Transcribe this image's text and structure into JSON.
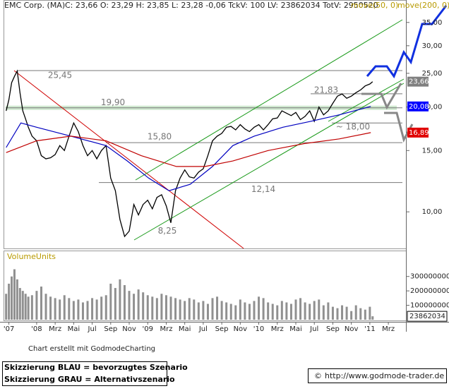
{
  "chart_data": {
    "type": "line",
    "title": "EMC Corp. (MA)",
    "subtitle": "C: 23,66 O: 23,29 H: 23,85 L: 23,28 -0,06 TckV: 100 LV: 23862034 TotV: 2950520",
    "y_scale": "log",
    "ylim": [
      7.85,
      40.6
    ],
    "yticks": [
      {
        "value": 10,
        "label": "10,00"
      },
      {
        "value": 15,
        "label": "15,00"
      },
      {
        "value": 20,
        "label": "20,00"
      },
      {
        "value": 25,
        "label": "25,00"
      },
      {
        "value": 30,
        "label": "30,00"
      },
      {
        "value": 35,
        "label": "35,00"
      }
    ],
    "xlim": [
      -3.35,
      39.9
    ],
    "xticks": [
      {
        "value": -3,
        "label": "'07"
      },
      {
        "value": 0,
        "label": "'08"
      },
      {
        "value": 2,
        "label": "Mrz"
      },
      {
        "value": 4,
        "label": "Mai"
      },
      {
        "value": 6,
        "label": "Jul"
      },
      {
        "value": 8,
        "label": "Sep"
      },
      {
        "value": 10,
        "label": "Nov"
      },
      {
        "value": 12,
        "label": "'09"
      },
      {
        "value": 14,
        "label": "Mrz"
      },
      {
        "value": 16,
        "label": "Mai"
      },
      {
        "value": 18,
        "label": "Jul"
      },
      {
        "value": 20,
        "label": "Sep"
      },
      {
        "value": 22,
        "label": "Nov"
      },
      {
        "value": 24,
        "label": "'10"
      },
      {
        "value": 26,
        "label": "Mrz"
      },
      {
        "value": 28,
        "label": "Mai"
      },
      {
        "value": 30,
        "label": "Jul"
      },
      {
        "value": 32,
        "label": "Sep"
      },
      {
        "value": 34,
        "label": "Nov"
      },
      {
        "value": 36,
        "label": "'11"
      },
      {
        "value": 38,
        "label": "Mrz"
      }
    ],
    "x": [
      -3.3,
      -3,
      -2.7,
      -2.4,
      -2.1,
      -1.8,
      -1.5,
      -1.2,
      -0.9,
      -0.5,
      0,
      0.5,
      1,
      1.5,
      2,
      2.5,
      3,
      3.5,
      4,
      4.5,
      5,
      5.5,
      6,
      6.5,
      7,
      7.5,
      8,
      8.5,
      9,
      9.5,
      10,
      10.5,
      11,
      11.5,
      12,
      12.5,
      13,
      13.5,
      14,
      14.5,
      15,
      15.5,
      16,
      16.5,
      17,
      17.5,
      18,
      18.5,
      19,
      19.5,
      20,
      20.5,
      21,
      21.5,
      22,
      22.5,
      23,
      23.5,
      24,
      24.5,
      25,
      25.5,
      26,
      26.5,
      27,
      27.5,
      28,
      28.5,
      29,
      29.5,
      30,
      30.5,
      31,
      31.5,
      32,
      32.5,
      33,
      33.5,
      34,
      34.5,
      35,
      35.5,
      36,
      36.3
    ],
    "series": [
      {
        "color": "#000000",
        "values": [
          19.5,
          21,
          23.5,
          24.5,
          25.4,
          22,
          19.5,
          18.5,
          17.5,
          16.5,
          16,
          14.5,
          14.2,
          14.3,
          14.6,
          15.5,
          15,
          16.5,
          18,
          17,
          15.5,
          14.5,
          15,
          14.2,
          15,
          15.5,
          12.5,
          11.5,
          9.5,
          8.5,
          8.8,
          10.5,
          9.8,
          10.5,
          10.8,
          10.2,
          11,
          11.2,
          10.4,
          9.3,
          11.5,
          12.5,
          13.2,
          12.6,
          12.5,
          13,
          13.3,
          14.5,
          16,
          16.5,
          16.8,
          17.5,
          17.6,
          17.2,
          17.8,
          17.3,
          17,
          17.5,
          17.8,
          17.2,
          17.8,
          18.5,
          18.6,
          19.5,
          19.2,
          18.9,
          19.3,
          18.4,
          18.8,
          19.5,
          18.2,
          20,
          19,
          19.5,
          20.5,
          21.5,
          21.8,
          21.2,
          21.5,
          22,
          22.4,
          23,
          23.3,
          23.66
        ]
      },
      {
        "name": "move(50, 0)",
        "color": "#0000c0",
        "x": [
          -3.3,
          -1.7,
          0,
          3.7,
          7.5,
          9.8,
          12.1,
          14.3,
          16.6,
          19.0,
          21.2,
          23.5,
          26.6,
          29.6,
          32.7,
          36.1
        ],
        "values": [
          15.3,
          18,
          17.5,
          16.5,
          15.5,
          14,
          12.5,
          11.5,
          12,
          13.5,
          15.5,
          16.5,
          17.5,
          18.2,
          19,
          20.08
        ]
      },
      {
        "name": "move(200, 0)",
        "color": "#c00000",
        "x": [
          -3.3,
          0,
          3.7,
          7.5,
          11.3,
          15.1,
          18.2,
          21.2,
          25.0,
          28.9,
          32.7,
          36.1
        ],
        "values": [
          14.8,
          16,
          16.5,
          16,
          14.5,
          13.5,
          13.5,
          14,
          15,
          15.7,
          16.2,
          16.89
        ]
      }
    ],
    "levels": [
      {
        "value": 25.45,
        "label": "25,45"
      },
      {
        "value": 19.9,
        "label": "19,90"
      },
      {
        "value": 15.8,
        "label": "15,80"
      },
      {
        "value": 12.14,
        "label": "12,14"
      },
      {
        "value": 8.25,
        "label": "8,25"
      },
      {
        "value": 21.83,
        "label": "21,83"
      },
      {
        "value": 18,
        "label": "~ 18,00"
      }
    ],
    "price_labels": [
      {
        "value": 23.66,
        "label": "23,66",
        "color": "#808080"
      },
      {
        "value": 20.08,
        "label": "20,08",
        "color": "#0000ff"
      },
      {
        "value": 16.89,
        "label": "16,89",
        "color": "#e00000"
      }
    ],
    "volume": {
      "label": "VolumeUnits",
      "color": "#909090",
      "ylim": [
        0,
        470000000
      ],
      "yticks": [
        100000000,
        200000000,
        300000000
      ],
      "values": [
        180000000,
        250000000,
        300000000,
        350000000,
        280000000,
        220000000,
        200000000,
        180000000,
        160000000,
        170000000,
        200000000,
        230000000,
        180000000,
        160000000,
        150000000,
        140000000,
        170000000,
        150000000,
        130000000,
        140000000,
        120000000,
        130000000,
        150000000,
        140000000,
        160000000,
        170000000,
        250000000,
        220000000,
        280000000,
        240000000,
        200000000,
        180000000,
        210000000,
        190000000,
        170000000,
        160000000,
        150000000,
        180000000,
        170000000,
        160000000,
        150000000,
        140000000,
        130000000,
        150000000,
        140000000,
        120000000,
        130000000,
        110000000,
        150000000,
        160000000,
        130000000,
        120000000,
        110000000,
        100000000,
        140000000,
        120000000,
        110000000,
        130000000,
        160000000,
        150000000,
        120000000,
        110000000,
        100000000,
        130000000,
        120000000,
        110000000,
        140000000,
        150000000,
        120000000,
        110000000,
        130000000,
        140000000,
        100000000,
        120000000,
        90000000,
        80000000,
        100000000,
        90000000,
        60000000,
        100000000,
        80000000,
        70000000,
        90000000,
        23862034
      ]
    }
  },
  "footer": {
    "credit": "Chart erstellt mit GodmodeCharting",
    "note_blue": "Skizzierung BLAU = bevorzugtes Szenario",
    "note_gray": "Skizzierung GRAU = Alternativszenario",
    "copyright": "©",
    "url": "http://www.godmode-trader.de"
  }
}
